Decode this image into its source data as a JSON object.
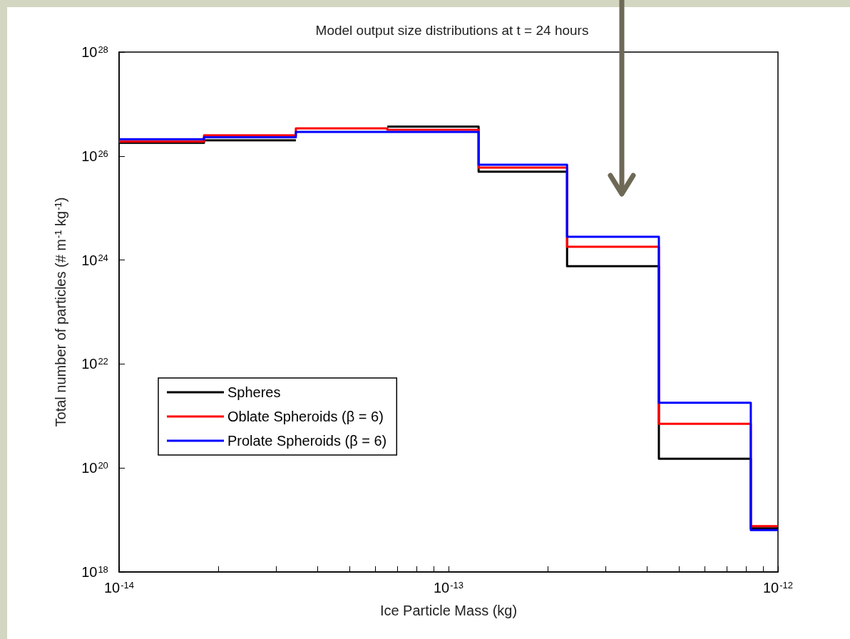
{
  "chart_data": {
    "type": "step",
    "title": "Model output size distributions at t = 24 hours",
    "xlabel": "Ice Particle Mass (kg)",
    "ylabel": "Total number of particles (# m$^{-1}$ kg$^{-1}$)",
    "x": [
      1e-14,
      1.81e-14,
      3.44e-14,
      6.52e-14,
      1.234e-13,
      2.29e-13,
      4.35e-13,
      8.27e-13,
      1e-12
    ],
    "series": [
      {
        "name": "Spheres",
        "color": "#000000",
        "values": [
          1.8e+26,
          2e+26,
          null,
          3.7e+26,
          5e+25,
          7.6e+23,
          1.5e+20,
          6.9e+18,
          6.9e+18
        ]
      },
      {
        "name": "Oblate Spheroids (β = 6)",
        "color": "#ff0000",
        "values": [
          1.9e+26,
          2.5e+26,
          3.4e+26,
          3.2e+26,
          6e+25,
          1.8e+24,
          7.1e+20,
          7.6e+18,
          7.6e+18
        ]
      },
      {
        "name": "Prolate Spheroids (β = 6)",
        "color": "#0000ff",
        "values": [
          2.1e+26,
          2.3e+26,
          2.9e+26,
          2.9e+26,
          6.8e+25,
          2.8e+24,
          1.8e+21,
          6.4e+18,
          6.4e+18
        ]
      }
    ],
    "log": "xy",
    "xlim": [
      1e-14,
      1e-12
    ],
    "ylim": [
      1e+18,
      1e+28
    ],
    "xticks": [
      {
        "value": 1e-14,
        "label": "10$^{-14}$"
      },
      {
        "value": 2e-14,
        "label": null
      },
      {
        "value": 3e-14,
        "label": null
      },
      {
        "value": 4e-14,
        "label": null
      },
      {
        "value": 5e-14,
        "label": null
      },
      {
        "value": 6e-14,
        "label": null
      },
      {
        "value": 7e-14,
        "label": null
      },
      {
        "value": 8e-14,
        "label": null
      },
      {
        "value": 9e-14,
        "label": null
      },
      {
        "value": 1e-13,
        "label": "10$^{-13}$"
      },
      {
        "value": 2e-13,
        "label": null
      },
      {
        "value": 3e-13,
        "label": null
      },
      {
        "value": 4e-13,
        "label": null
      },
      {
        "value": 5e-13,
        "label": null
      },
      {
        "value": 6e-13,
        "label": null
      },
      {
        "value": 7e-13,
        "label": null
      },
      {
        "value": 8e-13,
        "label": null
      },
      {
        "value": 9e-13,
        "label": null
      },
      {
        "value": 1e-12,
        "label": "10$^{-12}$"
      }
    ],
    "yticks": [
      {
        "value": 1e+18,
        "label": "10$^{18}$"
      },
      {
        "value": 1e+20,
        "label": "10$^{20}$"
      },
      {
        "value": 1e+22,
        "label": "10$^{22}$"
      },
      {
        "value": 1e+24,
        "label": "10$^{24}$"
      },
      {
        "value": 1e+26,
        "label": "10$^{26}$"
      },
      {
        "value": 1e+28,
        "label": "10$^{28}$"
      }
    ],
    "grid": false,
    "legend": "left",
    "marker": "none",
    "line_style": "solid"
  }
}
